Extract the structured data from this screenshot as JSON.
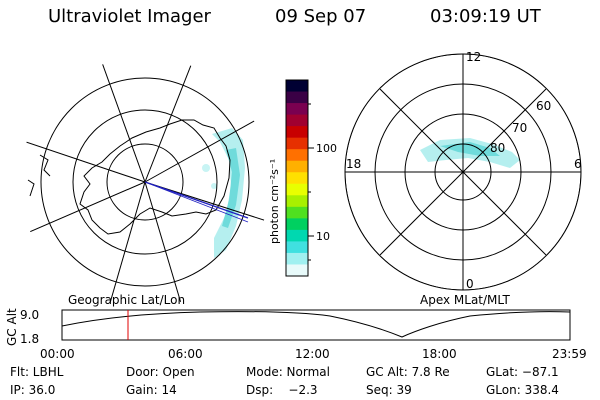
{
  "header": {
    "title": "Ultraviolet Imager",
    "date": "09 Sep 07",
    "time": "03:09:19 UT"
  },
  "colorbar": {
    "unit_label": "photon cm⁻²s⁻¹",
    "ticks": [
      "100",
      "10"
    ],
    "colors": [
      "#000033",
      "#3a0045",
      "#7a0050",
      "#a00030",
      "#c80000",
      "#e63000",
      "#ff7000",
      "#ffb000",
      "#ffe000",
      "#e8ff00",
      "#a8f000",
      "#50e020",
      "#00d060",
      "#00d8b0",
      "#40e0e0",
      "#a0f0f0",
      "#e8fafa"
    ]
  },
  "geo_plot": {
    "label": "Geographic Lat/Lon"
  },
  "mag_plot": {
    "label": "Apex MLat/MLT",
    "mlt_labels": {
      "top": "12",
      "left": "18",
      "right": "6",
      "bottom": "0"
    },
    "mlat_labels": [
      "60",
      "70",
      "80"
    ]
  },
  "altitude_strip": {
    "axis_label": "GC Alt",
    "ticks": [
      "9.0",
      "1.8"
    ],
    "time_ticks": [
      "00:00",
      "06:00",
      "12:00",
      "18:00",
      "23:59"
    ],
    "current_time_fraction": 0.13
  },
  "info": {
    "row1": [
      "Flt: LBHL",
      "Door: Open",
      "Mode: Normal",
      "GC Alt: 7.8 Re",
      "GLat: −87.1"
    ],
    "row2": [
      "IP: 36.0",
      "Gain: 14",
      "Dsp:    −2.3",
      "Seq: 39",
      "GLon: 338.4"
    ]
  }
}
